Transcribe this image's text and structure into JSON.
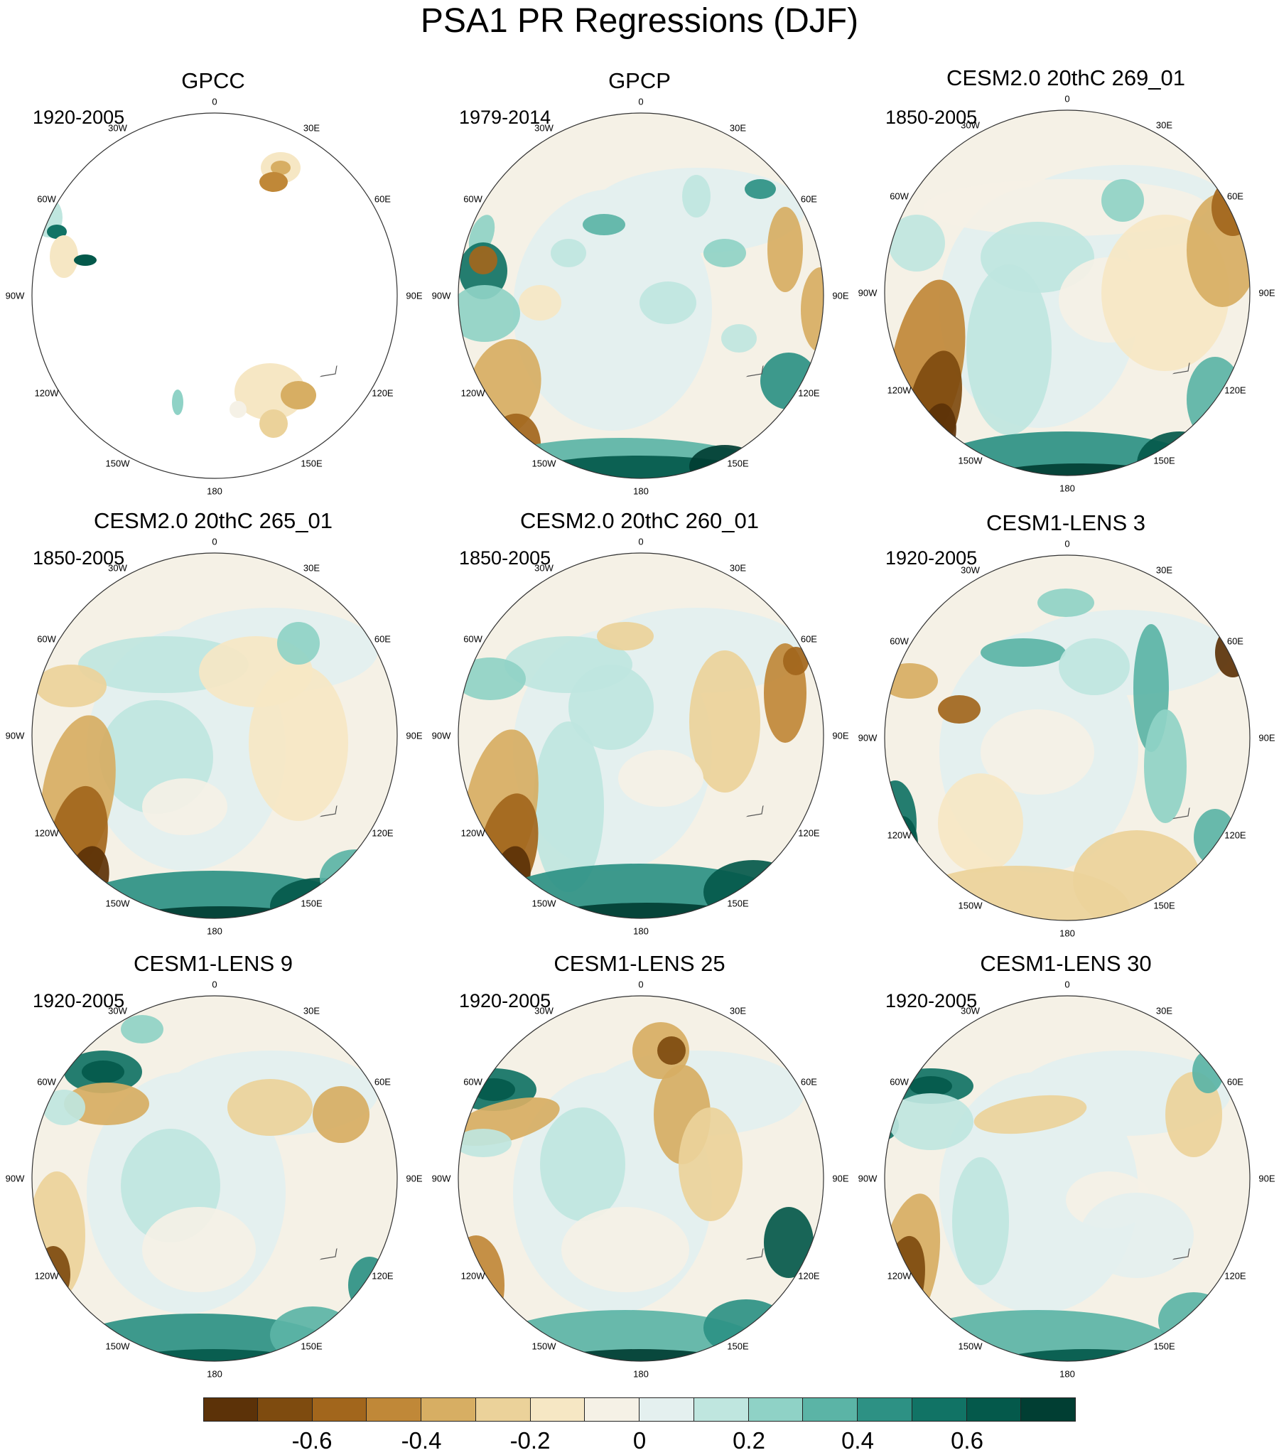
{
  "title": "PSA1 PR Regressions (DJF)",
  "lon_labels": [
    "0",
    "30E",
    "60E",
    "90E",
    "120E",
    "150E",
    "180",
    "150W",
    "120W",
    "90W",
    "60W",
    "30W"
  ],
  "colors": {
    "scale": [
      "#5c3208",
      "#7e4b0f",
      "#a2661c",
      "#c08838",
      "#d7ae63",
      "#ebd29a",
      "#f6e7c4",
      "#f5f1e6",
      "#e4f0ef",
      "#bfe6df",
      "#8fd2c6",
      "#5bb4a6",
      "#2d9184",
      "#117365",
      "#04594b",
      "#013e33"
    ],
    "coast": "#555555"
  },
  "colorbar": {
    "tick_labels": [
      "-0.6",
      "-0.4",
      "-0.2",
      "0",
      "0.2",
      "0.4",
      "0.6"
    ],
    "boundaries": [
      -0.7,
      -0.6,
      -0.5,
      -0.4,
      -0.3,
      -0.2,
      -0.1,
      0,
      0.1,
      0.2,
      0.3,
      0.4,
      0.5,
      0.6,
      0.7
    ]
  },
  "panels": [
    {
      "name": "GPCC",
      "period": "1920-2005",
      "pattern": "gpcc"
    },
    {
      "name": "GPCP",
      "period": "1979-2014",
      "pattern": "gpcp"
    },
    {
      "name": "CESM2.0 20thC 269_01",
      "period": "1850-2005",
      "pattern": "m1"
    },
    {
      "name": "CESM2.0 20thC 265_01",
      "period": "1850-2005",
      "pattern": "m2"
    },
    {
      "name": "CESM2.0 20thC 260_01",
      "period": "1850-2005",
      "pattern": "m3"
    },
    {
      "name": "CESM1-LENS 3",
      "period": "1920-2005",
      "pattern": "l3"
    },
    {
      "name": "CESM1-LENS 9",
      "period": "1920-2005",
      "pattern": "l9"
    },
    {
      "name": "CESM1-LENS 25",
      "period": "1920-2005",
      "pattern": "l25"
    },
    {
      "name": "CESM1-LENS 30",
      "period": "1920-2005",
      "pattern": "l30"
    }
  ]
}
